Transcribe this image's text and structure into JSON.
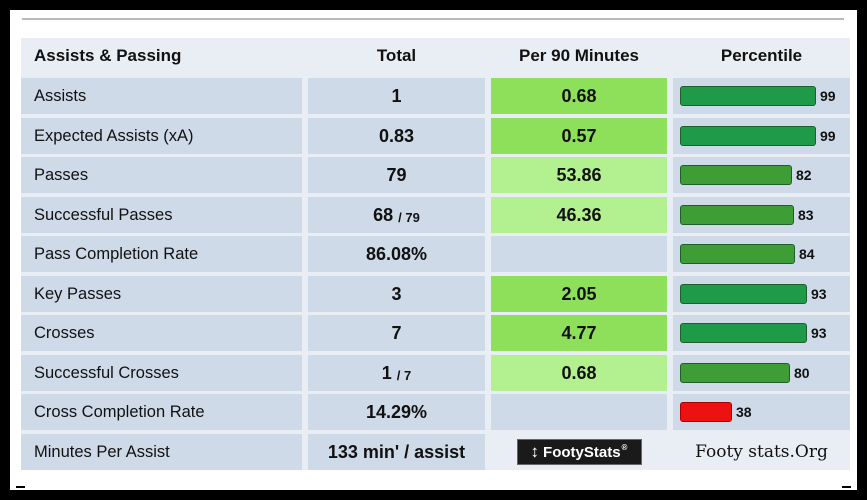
{
  "header": {
    "name": "Assists & Passing",
    "total": "Total",
    "per90": "Per 90 Minutes",
    "percentile": "Percentile"
  },
  "rows": [
    {
      "name": "Assists",
      "total": "1",
      "total_sub": "",
      "per90": "0.68",
      "per90_color": "#8ee05a",
      "percentile": 99,
      "bar_color": "#1f9a49"
    },
    {
      "name": "Expected Assists (xA)",
      "total": "0.83",
      "total_sub": "",
      "per90": "0.57",
      "per90_color": "#8ee05a",
      "percentile": 99,
      "bar_color": "#1f9a49"
    },
    {
      "name": "Passes",
      "total": "79",
      "total_sub": "",
      "per90": "53.86",
      "per90_color": "#b3f08f",
      "percentile": 82,
      "bar_color": "#3e9d34"
    },
    {
      "name": "Successful Passes",
      "total": "68",
      "total_sub": "/ 79",
      "per90": "46.36",
      "per90_color": "#b3f08f",
      "percentile": 83,
      "bar_color": "#3e9d34"
    },
    {
      "name": "Pass Completion Rate",
      "total": "86.08%",
      "total_sub": "",
      "per90": "",
      "per90_color": "",
      "percentile": 84,
      "bar_color": "#3e9d34"
    },
    {
      "name": "Key Passes",
      "total": "3",
      "total_sub": "",
      "per90": "2.05",
      "per90_color": "#8ee05a",
      "percentile": 93,
      "bar_color": "#1f9a49"
    },
    {
      "name": "Crosses",
      "total": "7",
      "total_sub": "",
      "per90": "4.77",
      "per90_color": "#8ee05a",
      "percentile": 93,
      "bar_color": "#1f9a49"
    },
    {
      "name": "Successful Crosses",
      "total": "1",
      "total_sub": "/ 7",
      "per90": "0.68",
      "per90_color": "#b3f08f",
      "percentile": 80,
      "bar_color": "#3e9d34"
    },
    {
      "name": "Cross Completion Rate",
      "total": "14.29%",
      "total_sub": "",
      "per90": "",
      "per90_color": "",
      "percentile": 38,
      "bar_color": "#ee1111"
    }
  ],
  "footer": {
    "name": "Minutes Per Assist",
    "total": "133 min' / assist",
    "logo_text": "FootyStats",
    "wordmark": "Footy stats.Org"
  }
}
